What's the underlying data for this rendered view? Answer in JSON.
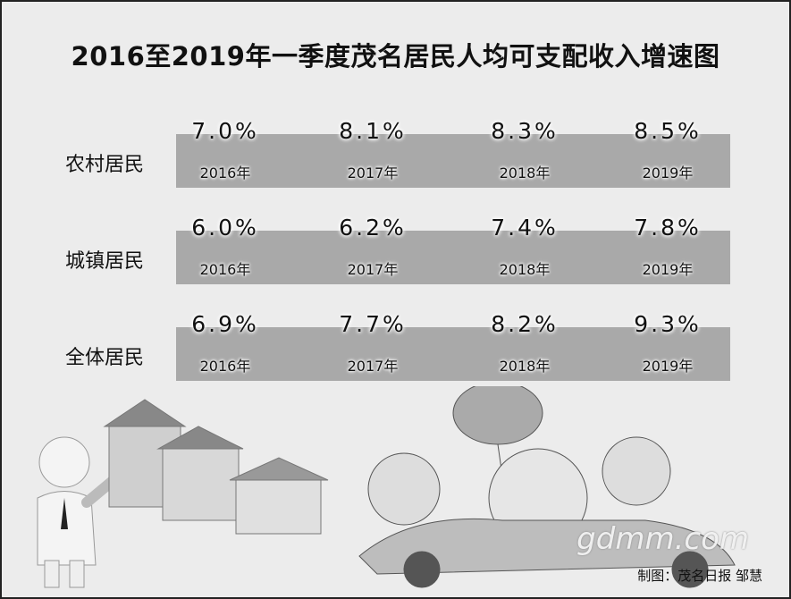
{
  "title": "2016至2019年一季度茂名居民人均可支配收入增速图",
  "rows": [
    {
      "label": "农村居民",
      "cells": [
        {
          "value": "7.0%",
          "year": "2016年"
        },
        {
          "value": "8.1%",
          "year": "2017年"
        },
        {
          "value": "8.3%",
          "year": "2018年"
        },
        {
          "value": "8.5%",
          "year": "2019年"
        }
      ]
    },
    {
      "label": "城镇居民",
      "cells": [
        {
          "value": "6.0%",
          "year": "2016年"
        },
        {
          "value": "6.2%",
          "year": "2017年"
        },
        {
          "value": "7.4%",
          "year": "2018年"
        },
        {
          "value": "7.8%",
          "year": "2019年"
        }
      ]
    },
    {
      "label": "全体居民",
      "cells": [
        {
          "value": "6.9%",
          "year": "2016年"
        },
        {
          "value": "7.7%",
          "year": "2017年"
        },
        {
          "value": "8.2%",
          "year": "2018年"
        },
        {
          "value": "9.3%",
          "year": "2019年"
        }
      ]
    }
  ],
  "watermark": "gdmm.com",
  "credit": "制图：茂名日报 邹慧"
}
